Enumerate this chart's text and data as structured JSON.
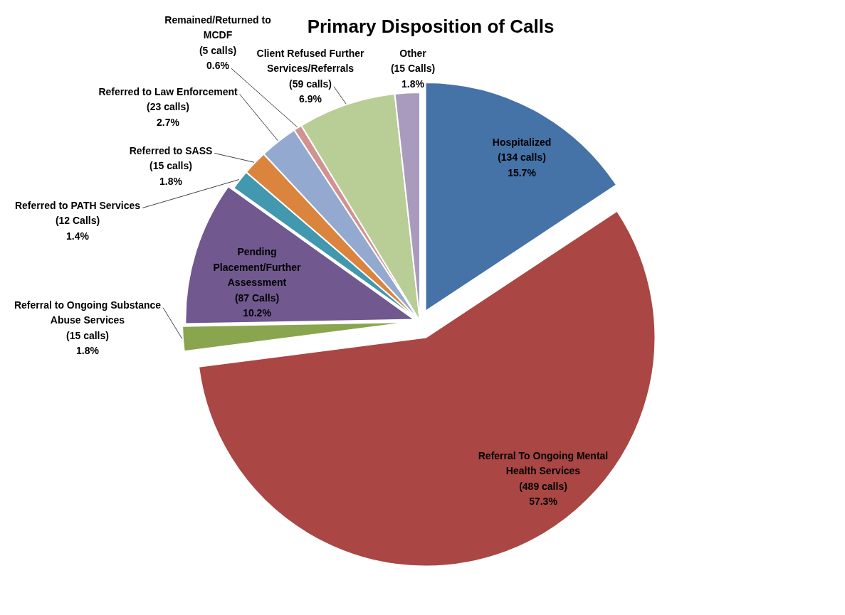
{
  "chart_data": {
    "type": "pie",
    "title": "Primary Disposition of Calls",
    "categories": [
      "Hospitalized",
      "Referral To Ongoing Mental Health Services",
      "Referral to Ongoing Substance Abuse Services",
      "Pending Placement/Further Assessment",
      "Referred to PATH Services",
      "Referred to SASS",
      "Referred to Law Enforcement",
      "Remained/Returned to MCDF",
      "Client Refused Further Services/Referrals",
      "Other"
    ],
    "values": [
      134,
      489,
      15,
      87,
      12,
      15,
      23,
      5,
      59,
      15
    ],
    "value_labels": [
      "(134 calls)\n15.7%",
      "(489 calls)\n57.3%",
      "(15 calls)\n1.8%",
      "(87 Calls)\n10.2%",
      "(12 Calls)\n1.4%",
      "(15 calls)\n1.8%",
      "(23 calls)\n2.7%",
      "(5 calls)\n0.6%",
      "(59 calls)\n6.9%",
      "(15 Calls)\n1.8%"
    ],
    "colors": [
      "#4572a7",
      "#aa4643",
      "#89a54e",
      "#71588f",
      "#4198af",
      "#db843d",
      "#93a9cf",
      "#d19392",
      "#b9cd96",
      "#a99bbd"
    ]
  }
}
